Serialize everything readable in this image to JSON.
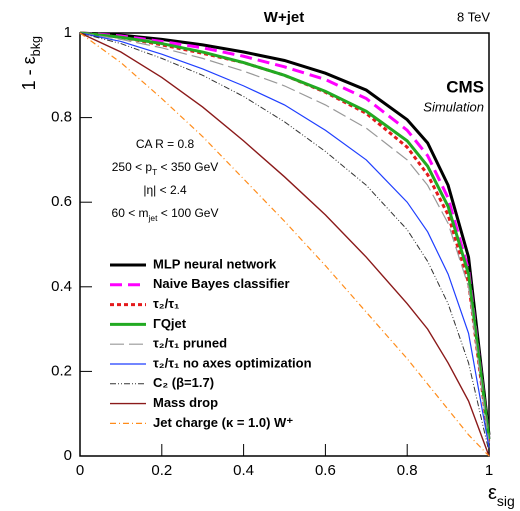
{
  "chart_data": {
    "type": "line",
    "title": "W+jet",
    "energy": "8 TeV",
    "experiment": "CMS",
    "status": "Simulation",
    "y_label": [
      "1 - ε",
      "bkg"
    ],
    "x_label": [
      "ε",
      "sig"
    ],
    "annotations": [
      [
        "CA R = 0.8"
      ],
      [
        "250 < p",
        "T",
        " < 350 GeV"
      ],
      [
        "|η| < 2.4"
      ],
      [
        "60 < m",
        "jet",
        " < 100 GeV"
      ]
    ],
    "x": [
      0,
      0.1,
      0.2,
      0.3,
      0.4,
      0.5,
      0.6,
      0.7,
      0.8,
      0.85,
      0.9,
      0.95,
      1
    ],
    "xlim": [
      0,
      1
    ],
    "ylim": [
      0,
      1
    ],
    "xticks": [
      0,
      0.2,
      0.4,
      0.6,
      0.8,
      1
    ],
    "yticks": [
      0,
      0.2,
      0.4,
      0.6,
      0.8,
      1
    ],
    "series": [
      {
        "name": "MLP neural network",
        "color": "#000000",
        "width": 3,
        "dash": "none",
        "values": [
          1,
          0.995,
          0.985,
          0.972,
          0.955,
          0.935,
          0.905,
          0.865,
          0.795,
          0.74,
          0.64,
          0.47,
          0.05
        ]
      },
      {
        "name": "Naive Bayes classifier",
        "color": "#ff00ff",
        "width": 3,
        "dash": "12,6",
        "values": [
          1,
          0.993,
          0.98,
          0.965,
          0.945,
          0.92,
          0.89,
          0.845,
          0.77,
          0.71,
          0.61,
          0.44,
          0.04
        ]
      },
      {
        "name": "τ₂/τ₁",
        "color": "#e41a1c",
        "width": 3,
        "dash": "4,3",
        "values": [
          1,
          0.99,
          0.972,
          0.952,
          0.93,
          0.9,
          0.86,
          0.81,
          0.73,
          0.665,
          0.57,
          0.41,
          0.03
        ]
      },
      {
        "name": "ΓQjet",
        "color": "#22aa22",
        "width": 3,
        "dash": "none",
        "values": [
          1,
          0.99,
          0.975,
          0.955,
          0.93,
          0.9,
          0.862,
          0.815,
          0.745,
          0.685,
          0.59,
          0.43,
          0.04
        ]
      },
      {
        "name": "τ₂/τ₁ pruned",
        "color": "#999999",
        "width": 1.2,
        "dash": "14,5",
        "values": [
          1,
          0.985,
          0.965,
          0.94,
          0.91,
          0.875,
          0.83,
          0.775,
          0.7,
          0.64,
          0.55,
          0.4,
          0.03
        ]
      },
      {
        "name": "τ₂/τ₁ no axes optimization",
        "color": "#1f3fff",
        "width": 1.2,
        "dash": "none",
        "values": [
          1,
          0.98,
          0.95,
          0.915,
          0.875,
          0.83,
          0.77,
          0.7,
          0.6,
          0.53,
          0.43,
          0.29,
          0.02
        ]
      },
      {
        "name": "C₂ (β=1.7)",
        "color": "#333333",
        "width": 1,
        "dash": "6,2,1,2,1,2",
        "values": [
          1,
          0.975,
          0.94,
          0.9,
          0.85,
          0.79,
          0.72,
          0.64,
          0.535,
          0.46,
          0.36,
          0.22,
          0.01
        ]
      },
      {
        "name": "Mass drop",
        "color": "#8b1a1a",
        "width": 1.4,
        "dash": "none",
        "values": [
          1,
          0.955,
          0.895,
          0.825,
          0.745,
          0.66,
          0.57,
          0.47,
          0.36,
          0.3,
          0.22,
          0.13,
          0
        ]
      },
      {
        "name": "Jet charge (κ = 1.0) W⁺",
        "color": "#ff8c1a",
        "width": 1.2,
        "dash": "6,3,1,3",
        "values": [
          1,
          0.93,
          0.845,
          0.755,
          0.655,
          0.555,
          0.45,
          0.34,
          0.23,
          0.17,
          0.11,
          0.05,
          0
        ]
      }
    ]
  }
}
